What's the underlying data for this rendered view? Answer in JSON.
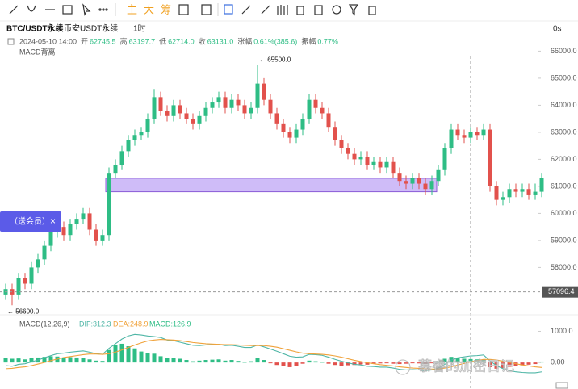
{
  "toolbar": {
    "buttons": [
      "主",
      "大",
      "筹"
    ]
  },
  "header": {
    "symbol": "BTC/USDT永续",
    "exchange": "币安USDT永续",
    "interval": "1时",
    "timer": "0s",
    "date": "2024-05-10 14:00",
    "fields": [
      {
        "label": "开",
        "value": "62745.5"
      },
      {
        "label": "高",
        "value": "63197.7"
      },
      {
        "label": "低",
        "value": "62714.0"
      },
      {
        "label": "收",
        "value": "63131.0"
      },
      {
        "label": "涨幅",
        "value": "0.61%(385.6)"
      },
      {
        "label": "振幅",
        "value": "0.77%"
      }
    ],
    "indicator": "MACD背离"
  },
  "popup": {
    "text": "（送会员）",
    "close": "×"
  },
  "watermark": "慕睿的加密日记",
  "chart_data": [
    {
      "type": "candlestick",
      "up_color": "#2ebd85",
      "down_color": "#e2514c",
      "open": [
        57000,
        57200,
        57000,
        57600,
        57400,
        58000,
        58300,
        58800,
        59300,
        59500,
        59200,
        59600,
        59800,
        60000,
        59400,
        59000,
        59200,
        61500,
        61800,
        62300,
        62700,
        62900,
        63000,
        63500,
        64300,
        63800,
        63600,
        64000,
        63700,
        63500,
        63300,
        63600,
        63900,
        64100,
        64300,
        63900,
        64200,
        64000,
        63700,
        63900,
        64800,
        64200,
        63700,
        63300,
        63000,
        62800,
        63100,
        63500,
        64200,
        63900,
        63700,
        63200,
        62700,
        62400,
        62200,
        62000,
        62100,
        61800,
        61900,
        61700,
        61900,
        61500,
        61200,
        61100,
        61300,
        61100,
        60900,
        61200,
        61600,
        62400,
        63100,
        62900,
        62800,
        63000,
        62900,
        63100,
        61000,
        60500,
        60600,
        60900,
        60800,
        60900,
        60700,
        60800
      ],
      "high": [
        57400,
        57400,
        57800,
        57800,
        58200,
        58500,
        59000,
        59500,
        59700,
        59700,
        59800,
        60000,
        60200,
        60200,
        59600,
        59400,
        61700,
        62000,
        62500,
        62900,
        63100,
        63200,
        63700,
        64600,
        64500,
        64000,
        64200,
        64200,
        63900,
        63700,
        63800,
        64100,
        64300,
        64500,
        64500,
        64400,
        64400,
        64200,
        64100,
        65500,
        65000,
        64400,
        63900,
        63500,
        63200,
        63300,
        63700,
        64400,
        64400,
        64100,
        63900,
        63400,
        62900,
        62600,
        62400,
        62300,
        62300,
        62100,
        62100,
        62100,
        62100,
        61700,
        61400,
        61500,
        61500,
        61300,
        61400,
        61800,
        62600,
        63300,
        63300,
        63100,
        63200,
        63200,
        63300,
        63300,
        61200,
        60800,
        61100,
        61100,
        61100,
        61100,
        61100,
        61500
      ],
      "low": [
        56800,
        56600,
        56800,
        57200,
        57200,
        57800,
        58100,
        58600,
        59100,
        59000,
        59000,
        59400,
        59600,
        59200,
        58800,
        58800,
        59000,
        61300,
        61600,
        62100,
        62500,
        62700,
        62800,
        63300,
        63600,
        63400,
        63400,
        63500,
        63300,
        63100,
        63100,
        63400,
        63700,
        63900,
        63700,
        63700,
        63800,
        63500,
        63500,
        63700,
        64000,
        63500,
        63100,
        62800,
        62600,
        62600,
        62900,
        63300,
        63700,
        63500,
        63000,
        62500,
        62200,
        62000,
        61800,
        61800,
        61600,
        61600,
        61500,
        61500,
        61300,
        61000,
        60900,
        60900,
        60900,
        60700,
        60700,
        61000,
        61400,
        62200,
        62700,
        62600,
        62600,
        62700,
        62700,
        60800,
        60300,
        60300,
        60400,
        60600,
        60600,
        60500,
        60500,
        60600
      ],
      "close": [
        57200,
        57000,
        57600,
        57400,
        58000,
        58300,
        58800,
        59300,
        59500,
        59200,
        59600,
        59800,
        60000,
        59400,
        59000,
        59200,
        61500,
        61800,
        62300,
        62700,
        62900,
        63000,
        63500,
        64300,
        63800,
        63600,
        64000,
        63700,
        63500,
        63300,
        63600,
        63900,
        64100,
        64300,
        63900,
        64200,
        64000,
        63700,
        63900,
        64800,
        64200,
        63700,
        63300,
        63000,
        62800,
        63100,
        63500,
        64200,
        63900,
        63700,
        63200,
        62700,
        62400,
        62200,
        62000,
        62100,
        61800,
        61900,
        61700,
        61900,
        61500,
        61200,
        61100,
        61300,
        61100,
        60900,
        61200,
        61600,
        62400,
        63100,
        62900,
        62800,
        63000,
        62900,
        63100,
        61000,
        60500,
        60600,
        60900,
        60800,
        60900,
        60700,
        60800,
        61300
      ],
      "ylim": [
        56400,
        66400
      ],
      "yticks": [
        {
          "value": 66000,
          "label": "66000.0"
        },
        {
          "value": 65000,
          "label": "65000.0"
        },
        {
          "value": 64000,
          "label": "64000.0"
        },
        {
          "value": 63000,
          "label": "63000.0"
        },
        {
          "value": 62000,
          "label": "62000.0"
        },
        {
          "value": 61000,
          "label": "61000.0"
        },
        {
          "value": 60000,
          "label": "60000.0"
        },
        {
          "value": 59000,
          "label": "59000.0"
        },
        {
          "value": 58000,
          "label": "58000.0"
        }
      ],
      "annotations": [
        {
          "label": "← 65500.0",
          "value": 65500
        },
        {
          "label": "← 56600.0",
          "value": 56600
        }
      ],
      "zone": {
        "from": 60800,
        "to": 61300,
        "color": "#c7b0f7"
      },
      "crosshair": 57096.4
    },
    {
      "type": "macd",
      "title": "MACD(12,26,9)",
      "legend": [
        "DIF:312.3",
        "DEA:248.9",
        "MACD:126.9"
      ],
      "ylim": [
        -850,
        1400
      ],
      "yticks": [
        {
          "value": 1000,
          "label": "1000.0"
        },
        {
          "value": 0,
          "label": "0.00"
        }
      ],
      "histogram": [
        150,
        120,
        130,
        100,
        140,
        160,
        180,
        200,
        190,
        150,
        170,
        160,
        150,
        100,
        60,
        50,
        400,
        550,
        600,
        520,
        450,
        350,
        300,
        280,
        200,
        150,
        140,
        120,
        80,
        40,
        60,
        80,
        90,
        100,
        60,
        80,
        50,
        20,
        40,
        150,
        80,
        -20,
        -80,
        -120,
        -150,
        -100,
        -40,
        60,
        40,
        20,
        -40,
        -80,
        -100,
        -90,
        -80,
        -60,
        -70,
        -40,
        -30,
        -20,
        -40,
        -50,
        -40,
        -20,
        -30,
        -40,
        -10,
        40,
        120,
        180,
        150,
        120,
        110,
        100,
        90,
        -150,
        -200,
        -180,
        -140,
        -110,
        -90,
        -70,
        -50,
        30
      ],
      "series": [
        {
          "color": "#4fb6a6",
          "values": [
            -100,
            -120,
            -60,
            -40,
            20,
            80,
            150,
            220,
            280,
            300,
            330,
            350,
            370,
            330,
            280,
            260,
            450,
            600,
            750,
            850,
            900,
            880,
            850,
            830,
            800,
            720,
            700,
            650,
            600,
            550,
            540,
            560,
            570,
            580,
            540,
            550,
            520,
            480,
            480,
            560,
            500,
            430,
            360,
            280,
            200,
            170,
            180,
            260,
            250,
            230,
            170,
            100,
            40,
            -10,
            -60,
            -80,
            -120,
            -130,
            -150,
            -150,
            -180,
            -220,
            -240,
            -230,
            -240,
            -260,
            -240,
            -180,
            -60,
            80,
            150,
            180,
            210,
            220,
            240,
            50,
            -100,
            -200,
            -260,
            -300,
            -320,
            -330,
            -330,
            -300
          ]
        },
        {
          "color": "#f0a23a",
          "values": [
            -200,
            -190,
            -160,
            -140,
            -100,
            -50,
            0,
            60,
            110,
            160,
            190,
            220,
            250,
            270,
            270,
            260,
            280,
            330,
            400,
            480,
            560,
            630,
            690,
            720,
            740,
            730,
            720,
            700,
            670,
            640,
            620,
            600,
            590,
            580,
            570,
            570,
            560,
            550,
            540,
            540,
            540,
            520,
            490,
            440,
            390,
            340,
            300,
            280,
            270,
            260,
            240,
            210,
            170,
            120,
            70,
            30,
            -10,
            -40,
            -70,
            -90,
            -110,
            -140,
            -160,
            -180,
            -190,
            -200,
            -210,
            -210,
            -180,
            -140,
            -80,
            -30,
            20,
            60,
            100,
            100,
            80,
            40,
            0,
            -40,
            -80,
            -110,
            -140,
            -160
          ]
        }
      ]
    }
  ]
}
